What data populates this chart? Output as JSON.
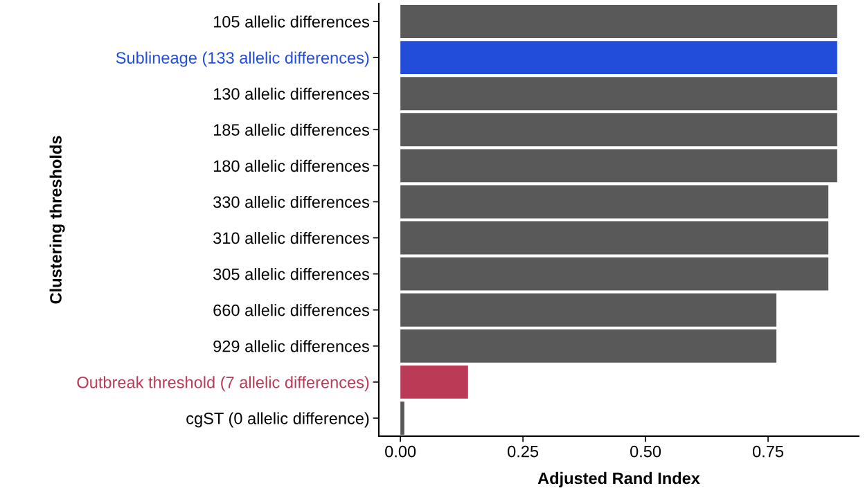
{
  "chart_data": {
    "type": "bar",
    "orientation": "horizontal",
    "xlabel": "Adjusted Rand Index",
    "ylabel": "Clustering thresholds",
    "categories": [
      "105 allelic differences",
      "Sublineage (133 allelic differences)",
      "130 allelic differences",
      "185 allelic differences",
      "180 allelic differences",
      "330 allelic differences",
      "310 allelic differences",
      "305 allelic differences",
      "660 allelic differences",
      "929 allelic differences",
      "Outbreak threshold (7 allelic differences)",
      "cgST (0 allelic difference)"
    ],
    "values": [
      0.891,
      0.891,
      0.891,
      0.891,
      0.891,
      0.873,
      0.873,
      0.873,
      0.767,
      0.767,
      0.138,
      0.008
    ],
    "color": "#595959",
    "colors": [
      "#595959",
      "#224ddb",
      "#595959",
      "#595959",
      "#595959",
      "#595959",
      "#595959",
      "#595959",
      "#595959",
      "#595959",
      "#bb3a55",
      "#595959"
    ],
    "xlim": [
      -0.044,
      0.935
    ],
    "xticks": [
      {
        "value": 0,
        "label": "0.00"
      },
      {
        "value": 0.25,
        "label": "0.25"
      },
      {
        "value": 0.5,
        "label": "0.50"
      },
      {
        "value": 0.75,
        "label": "0.75"
      }
    ],
    "grid": false,
    "legend": false
  }
}
